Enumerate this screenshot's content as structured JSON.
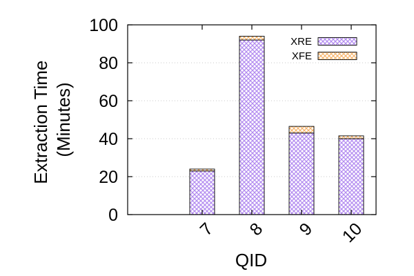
{
  "chart_data": {
    "type": "bar",
    "stacked": true,
    "categories": [
      "7",
      "8",
      "9",
      "10"
    ],
    "series": [
      {
        "name": "XRE",
        "values": [
          23,
          92,
          43,
          40
        ],
        "color": "#b38cf0",
        "pattern": "crosshatch"
      },
      {
        "name": "XFE",
        "values": [
          1,
          2,
          3.5,
          1.5
        ],
        "color": "#f7b56e",
        "pattern": "crosshatch"
      }
    ],
    "title": "",
    "xlabel": "QID",
    "ylabel_lines": [
      "Extraction Time",
      "(Minutes)"
    ],
    "ylim": [
      0,
      100
    ],
    "yticks": [
      0,
      20,
      40,
      60,
      80,
      100
    ],
    "grid": "horizontal-dotted",
    "legend_position": "top-right"
  }
}
